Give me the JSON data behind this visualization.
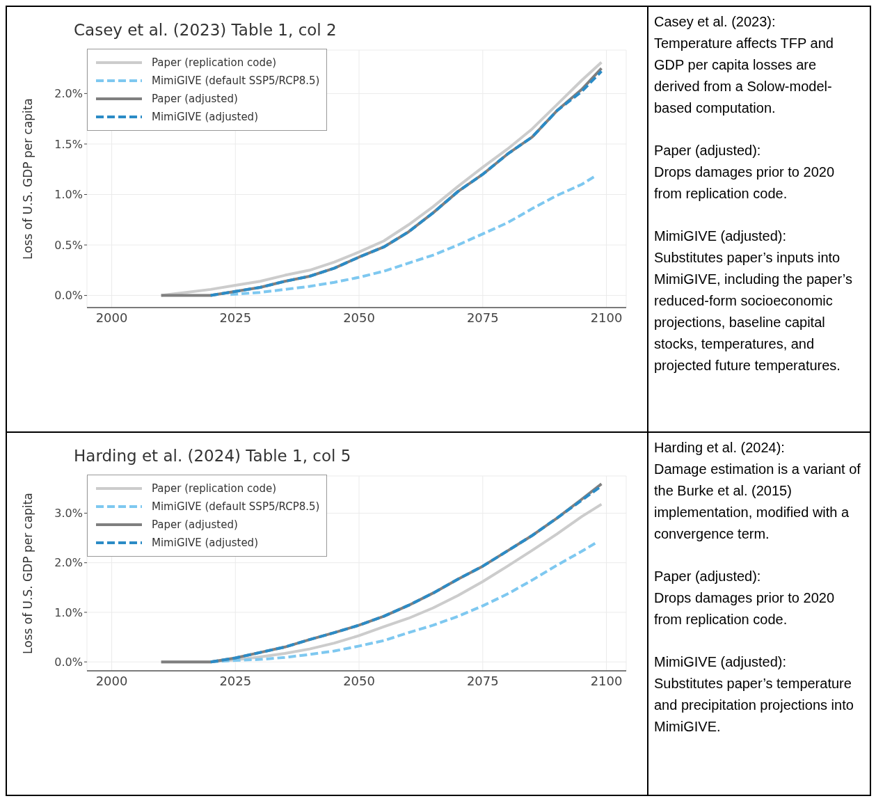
{
  "chart_data": [
    {
      "type": "line",
      "title": "Casey et al. (2023) Table 1, col 2",
      "ylabel": "Loss of U.S. GDP per capita",
      "xlim": [
        1995,
        2104
      ],
      "xticks": [
        2000,
        2025,
        2050,
        2075,
        2100
      ],
      "ylim": [
        -0.12,
        2.43
      ],
      "yticks": [
        {
          "value": 0,
          "label": "0.0%"
        },
        {
          "value": 0.5,
          "label": "0.5%"
        },
        {
          "value": 1,
          "label": "1.0%"
        },
        {
          "value": 1.5,
          "label": "1.5%"
        },
        {
          "value": 2,
          "label": "2.0%"
        }
      ],
      "grid": true,
      "legend": "top left",
      "marker": "none",
      "series": [
        {
          "name": "Paper (replication code)",
          "color": "#cccccc",
          "line_style": "solid",
          "x": [
            2010,
            2015,
            2020,
            2025,
            2030,
            2035,
            2040,
            2045,
            2050,
            2055,
            2060,
            2065,
            2070,
            2075,
            2080,
            2085,
            2090,
            2095,
            2099
          ],
          "values": [
            0,
            0.03,
            0.06,
            0.1,
            0.14,
            0.2,
            0.25,
            0.33,
            0.43,
            0.54,
            0.7,
            0.88,
            1.08,
            1.27,
            1.45,
            1.65,
            1.89,
            2.13,
            2.31
          ]
        },
        {
          "name": "MimiGIVE (default SSP5/RCP8.5)",
          "color": "#7ec8f0",
          "line_style": "dashed",
          "x": [
            2024,
            2030,
            2035,
            2040,
            2045,
            2050,
            2055,
            2060,
            2065,
            2070,
            2075,
            2080,
            2085,
            2090,
            2095,
            2098
          ],
          "values": [
            0.01,
            0.03,
            0.06,
            0.09,
            0.13,
            0.18,
            0.24,
            0.32,
            0.4,
            0.5,
            0.61,
            0.72,
            0.86,
            0.99,
            1.1,
            1.19
          ]
        },
        {
          "name": "Paper (adjusted)",
          "color": "#7f7f7f",
          "line_style": "solid",
          "x": [
            2010,
            2015,
            2020,
            2025,
            2030,
            2035,
            2040,
            2045,
            2050,
            2055,
            2060,
            2065,
            2070,
            2075,
            2080,
            2085,
            2090,
            2095,
            2099
          ],
          "values": [
            0,
            0,
            0,
            0.04,
            0.08,
            0.14,
            0.19,
            0.27,
            0.38,
            0.48,
            0.63,
            0.82,
            1.03,
            1.2,
            1.4,
            1.57,
            1.83,
            2.04,
            2.25
          ]
        },
        {
          "name": "MimiGIVE (adjusted)",
          "color": "#2b8bc6",
          "line_style": "dashed",
          "x": [
            2020,
            2025,
            2030,
            2035,
            2040,
            2045,
            2050,
            2055,
            2060,
            2065,
            2070,
            2075,
            2080,
            2085,
            2090,
            2095,
            2099
          ],
          "values": [
            0,
            0.04,
            0.08,
            0.14,
            0.19,
            0.27,
            0.38,
            0.48,
            0.63,
            0.82,
            1.03,
            1.2,
            1.4,
            1.57,
            1.83,
            2.02,
            2.22
          ]
        }
      ]
    },
    {
      "type": "other",
      "annotations": [
        "Casey et al. (2023):",
        "Temperature affects TFP and GDP per capita losses are derived from a Solow-model-based computation.",
        "Paper (adjusted):",
        "Drops damages prior to 2020 from replication code.",
        "MimiGIVE (adjusted):",
        "Substitutes paper’s inputs into MimiGIVE, including the paper’s reduced-form socioeconomic projections, baseline capital stocks, temperatures, and projected future temperatures."
      ]
    },
    {
      "type": "line",
      "title": "Harding et al. (2024) Table 1, col 5",
      "ylabel": "Loss of U.S. GDP per capita",
      "xlim": [
        1995,
        2104
      ],
      "xticks": [
        2000,
        2025,
        2050,
        2075,
        2100
      ],
      "ylim": [
        -0.18,
        3.75
      ],
      "yticks": [
        {
          "value": 0,
          "label": "0.0%"
        },
        {
          "value": 1,
          "label": "1.0%"
        },
        {
          "value": 2,
          "label": "2.0%"
        },
        {
          "value": 3,
          "label": "3.0%"
        }
      ],
      "grid": true,
      "legend": "top left",
      "marker": "none",
      "series": [
        {
          "name": "Paper (replication code)",
          "color": "#cccccc",
          "line_style": "solid",
          "x": [
            2010,
            2015,
            2020,
            2025,
            2030,
            2035,
            2040,
            2045,
            2050,
            2055,
            2060,
            2065,
            2070,
            2075,
            2080,
            2085,
            2090,
            2095,
            2099
          ],
          "values": [
            0,
            0,
            0,
            0.04,
            0.1,
            0.17,
            0.26,
            0.38,
            0.53,
            0.71,
            0.88,
            1.09,
            1.34,
            1.62,
            1.93,
            2.25,
            2.58,
            2.93,
            3.18
          ]
        },
        {
          "name": "MimiGIVE (default SSP5/RCP8.5)",
          "color": "#7ec8f0",
          "line_style": "dashed",
          "x": [
            2020,
            2025,
            2030,
            2035,
            2040,
            2045,
            2050,
            2055,
            2060,
            2065,
            2070,
            2075,
            2080,
            2085,
            2090,
            2095,
            2098
          ],
          "values": [
            0,
            0.03,
            0.05,
            0.09,
            0.15,
            0.22,
            0.32,
            0.43,
            0.59,
            0.74,
            0.92,
            1.13,
            1.37,
            1.65,
            1.95,
            2.23,
            2.41
          ]
        },
        {
          "name": "Paper (adjusted)",
          "color": "#7f7f7f",
          "line_style": "solid",
          "x": [
            2010,
            2015,
            2020,
            2025,
            2030,
            2035,
            2040,
            2045,
            2050,
            2055,
            2060,
            2065,
            2070,
            2075,
            2080,
            2085,
            2090,
            2095,
            2099
          ],
          "values": [
            0,
            0,
            0,
            0.08,
            0.19,
            0.3,
            0.45,
            0.59,
            0.74,
            0.92,
            1.14,
            1.39,
            1.67,
            1.93,
            2.24,
            2.55,
            2.9,
            3.28,
            3.59
          ]
        },
        {
          "name": "MimiGIVE (adjusted)",
          "color": "#2b8bc6",
          "line_style": "dashed",
          "x": [
            2020,
            2025,
            2030,
            2035,
            2040,
            2045,
            2050,
            2055,
            2060,
            2065,
            2070,
            2075,
            2080,
            2085,
            2090,
            2095,
            2099
          ],
          "values": [
            0,
            0.08,
            0.19,
            0.3,
            0.45,
            0.59,
            0.74,
            0.92,
            1.14,
            1.39,
            1.67,
            1.93,
            2.24,
            2.55,
            2.9,
            3.26,
            3.55
          ]
        }
      ]
    },
    {
      "type": "other",
      "annotations": [
        "Harding et al. (2024):",
        "Damage estimation is a variant of the Burke et al. (2015) implementation, modified with a convergence term.",
        "Paper (adjusted):",
        "Drops damages prior to 2020 from replication code.",
        "MimiGIVE (adjusted):",
        "Substitutes paper’s temperature and precipitation projections into MimiGIVE."
      ]
    }
  ]
}
